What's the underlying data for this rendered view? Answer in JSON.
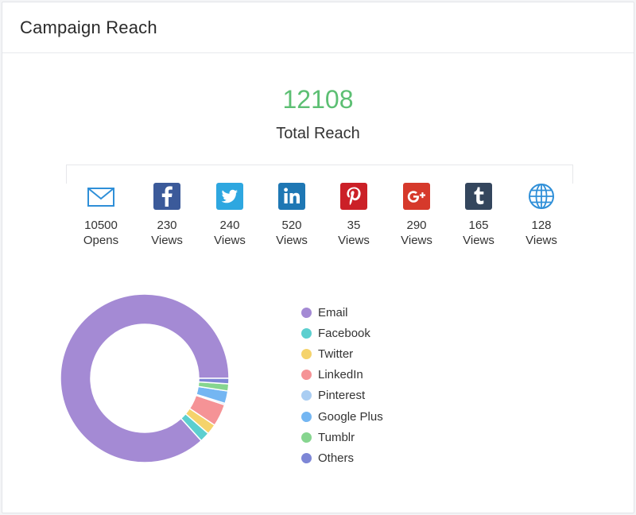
{
  "header": {
    "title": "Campaign Reach"
  },
  "summary": {
    "total_value": "12108",
    "total_label": "Total Reach"
  },
  "channels": [
    {
      "icon": "email-icon",
      "color": "#2f8fd8",
      "count": "10500",
      "unit": "Opens"
    },
    {
      "icon": "facebook-icon",
      "color": "#3b5a9a",
      "count": "230",
      "unit": "Views"
    },
    {
      "icon": "twitter-icon",
      "color": "#2ea7e0",
      "count": "240",
      "unit": "Views"
    },
    {
      "icon": "linkedin-icon",
      "color": "#1e77b4",
      "count": "520",
      "unit": "Views"
    },
    {
      "icon": "pinterest-icon",
      "color": "#cb2027",
      "count": "35",
      "unit": "Views"
    },
    {
      "icon": "google-plus-icon",
      "color": "#d6392b",
      "count": "290",
      "unit": "Views"
    },
    {
      "icon": "tumblr-icon",
      "color": "#34465d",
      "count": "165",
      "unit": "Views"
    },
    {
      "icon": "globe-icon",
      "color": "#2f8fd8",
      "count": "128",
      "unit": "Views"
    }
  ],
  "chart_data": {
    "type": "pie",
    "variant": "donut",
    "categories": [
      "Email",
      "Facebook",
      "Twitter",
      "LinkedIn",
      "Pinterest",
      "Google Plus",
      "Tumblr",
      "Others"
    ],
    "values": [
      10500,
      230,
      240,
      520,
      35,
      290,
      165,
      128
    ],
    "colors": [
      "#a48ad4",
      "#5ccfcf",
      "#f5d36b",
      "#f59396",
      "#a9cdf2",
      "#74b6f2",
      "#86d58f",
      "#7d86d6"
    ],
    "legend_position": "right"
  }
}
